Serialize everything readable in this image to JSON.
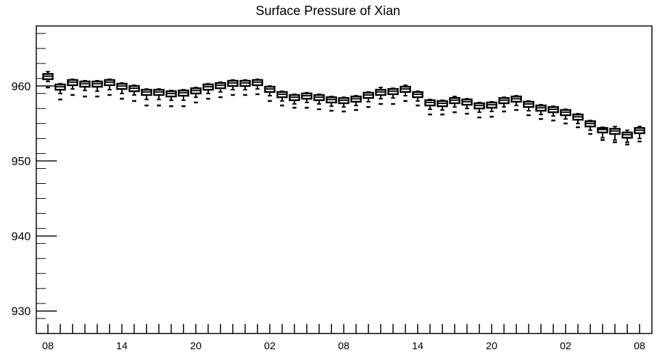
{
  "chart_data": {
    "type": "box",
    "title": "Surface Pressure of Xian",
    "xlabel": "",
    "ylabel": "",
    "ylim": [
      927,
      968
    ],
    "y_ticks": [
      930,
      940,
      950,
      960
    ],
    "x_tick_labels": [
      "08",
      "14",
      "20",
      "02",
      "08",
      "14",
      "20",
      "02",
      "08"
    ],
    "x_tick_label_positions": [
      0,
      6,
      12,
      18,
      24,
      30,
      36,
      42,
      48
    ],
    "grid": false,
    "series": [
      {
        "boxes": [
          {
            "x": 0,
            "median": 961.3,
            "q1": 960.9,
            "q3": 961.6,
            "whisker_low": 960.6,
            "whisker_high": 961.9,
            "outliers": [
              959.8
            ]
          },
          {
            "x": 1,
            "median": 959.9,
            "q1": 959.5,
            "q3": 960.2,
            "whisker_low": 959.0,
            "whisker_high": 960.3,
            "outliers": [
              958.2
            ]
          },
          {
            "x": 2,
            "median": 960.5,
            "q1": 960.1,
            "q3": 960.8,
            "whisker_low": 959.6,
            "whisker_high": 960.9,
            "outliers": [
              958.8
            ]
          },
          {
            "x": 3,
            "median": 960.3,
            "q1": 959.9,
            "q3": 960.6,
            "whisker_low": 959.4,
            "whisker_high": 960.7,
            "outliers": [
              958.6
            ]
          },
          {
            "x": 4,
            "median": 960.3,
            "q1": 959.9,
            "q3": 960.6,
            "whisker_low": 959.3,
            "whisker_high": 960.7,
            "outliers": [
              958.6
            ]
          },
          {
            "x": 5,
            "median": 960.5,
            "q1": 960.1,
            "q3": 960.8,
            "whisker_low": 959.5,
            "whisker_high": 960.9,
            "outliers": [
              958.8
            ]
          },
          {
            "x": 6,
            "median": 960.0,
            "q1": 959.6,
            "q3": 960.3,
            "whisker_low": 959.0,
            "whisker_high": 960.4,
            "outliers": [
              958.3
            ]
          },
          {
            "x": 7,
            "median": 959.7,
            "q1": 959.3,
            "q3": 960.0,
            "whisker_low": 958.8,
            "whisker_high": 960.1,
            "outliers": [
              958.0
            ]
          },
          {
            "x": 8,
            "median": 959.2,
            "q1": 958.8,
            "q3": 959.5,
            "whisker_low": 958.2,
            "whisker_high": 959.6,
            "outliers": [
              957.4
            ]
          },
          {
            "x": 9,
            "median": 959.2,
            "q1": 958.8,
            "q3": 959.5,
            "whisker_low": 958.2,
            "whisker_high": 959.6,
            "outliers": [
              957.4
            ]
          },
          {
            "x": 10,
            "median": 959.0,
            "q1": 958.6,
            "q3": 959.3,
            "whisker_low": 958.1,
            "whisker_high": 959.4,
            "outliers": [
              957.3
            ]
          },
          {
            "x": 11,
            "median": 959.1,
            "q1": 958.7,
            "q3": 959.4,
            "whisker_low": 958.1,
            "whisker_high": 959.5,
            "outliers": [
              957.3
            ]
          },
          {
            "x": 12,
            "median": 959.4,
            "q1": 959.0,
            "q3": 959.7,
            "whisker_low": 958.5,
            "whisker_high": 959.8,
            "outliers": [
              957.8
            ]
          },
          {
            "x": 13,
            "median": 959.9,
            "q1": 959.5,
            "q3": 960.2,
            "whisker_low": 959.0,
            "whisker_high": 960.3,
            "outliers": [
              958.3
            ]
          },
          {
            "x": 14,
            "median": 960.1,
            "q1": 959.7,
            "q3": 960.4,
            "whisker_low": 959.2,
            "whisker_high": 960.5,
            "outliers": [
              958.5
            ]
          },
          {
            "x": 15,
            "median": 960.4,
            "q1": 960.0,
            "q3": 960.7,
            "whisker_low": 959.5,
            "whisker_high": 960.8,
            "outliers": [
              958.8
            ]
          },
          {
            "x": 16,
            "median": 960.4,
            "q1": 960.0,
            "q3": 960.7,
            "whisker_low": 959.5,
            "whisker_high": 960.8,
            "outliers": [
              958.8
            ]
          },
          {
            "x": 17,
            "median": 960.5,
            "q1": 960.1,
            "q3": 960.8,
            "whisker_low": 959.6,
            "whisker_high": 960.9,
            "outliers": [
              958.9
            ]
          },
          {
            "x": 18,
            "median": 959.6,
            "q1": 959.2,
            "q3": 959.9,
            "whisker_low": 958.7,
            "whisker_high": 960.0,
            "outliers": [
              958.0
            ]
          },
          {
            "x": 19,
            "median": 958.9,
            "q1": 958.5,
            "q3": 959.2,
            "whisker_low": 958.0,
            "whisker_high": 959.3,
            "outliers": [
              957.4
            ]
          },
          {
            "x": 20,
            "median": 958.5,
            "q1": 958.1,
            "q3": 958.8,
            "whisker_low": 957.6,
            "whisker_high": 958.9,
            "outliers": [
              957.1
            ]
          },
          {
            "x": 21,
            "median": 958.7,
            "q1": 958.3,
            "q3": 959.0,
            "whisker_low": 957.8,
            "whisker_high": 959.1,
            "outliers": [
              957.1
            ]
          },
          {
            "x": 22,
            "median": 958.5,
            "q1": 958.1,
            "q3": 958.8,
            "whisker_low": 957.6,
            "whisker_high": 958.9,
            "outliers": [
              956.9
            ]
          },
          {
            "x": 23,
            "median": 958.2,
            "q1": 957.8,
            "q3": 958.5,
            "whisker_low": 957.3,
            "whisker_high": 958.6,
            "outliers": [
              956.7
            ]
          },
          {
            "x": 24,
            "median": 958.1,
            "q1": 957.7,
            "q3": 958.4,
            "whisker_low": 957.2,
            "whisker_high": 958.5,
            "outliers": [
              956.6
            ]
          },
          {
            "x": 25,
            "median": 958.3,
            "q1": 957.9,
            "q3": 958.6,
            "whisker_low": 957.4,
            "whisker_high": 958.7,
            "outliers": [
              956.8
            ]
          },
          {
            "x": 26,
            "median": 958.8,
            "q1": 958.4,
            "q3": 959.1,
            "whisker_low": 957.9,
            "whisker_high": 959.2,
            "outliers": [
              957.2
            ]
          },
          {
            "x": 27,
            "median": 959.2,
            "q1": 958.8,
            "q3": 959.5,
            "whisker_low": 958.3,
            "whisker_high": 959.8,
            "outliers": [
              957.6
            ]
          },
          {
            "x": 28,
            "median": 959.3,
            "q1": 958.9,
            "q3": 959.6,
            "whisker_low": 958.4,
            "whisker_high": 959.7,
            "outliers": [
              957.6
            ]
          },
          {
            "x": 29,
            "median": 959.6,
            "q1": 959.2,
            "q3": 959.9,
            "whisker_low": 958.7,
            "whisker_high": 960.1,
            "outliers": [
              958.0
            ]
          },
          {
            "x": 30,
            "median": 958.9,
            "q1": 958.5,
            "q3": 959.2,
            "whisker_low": 958.0,
            "whisker_high": 959.3,
            "outliers": [
              957.4
            ]
          },
          {
            "x": 31,
            "median": 957.8,
            "q1": 957.4,
            "q3": 958.1,
            "whisker_low": 956.9,
            "whisker_high": 958.2,
            "outliers": [
              956.2
            ]
          },
          {
            "x": 32,
            "median": 957.7,
            "q1": 957.3,
            "q3": 958.0,
            "whisker_low": 956.8,
            "whisker_high": 958.1,
            "outliers": [
              956.2
            ]
          },
          {
            "x": 33,
            "median": 958.1,
            "q1": 957.7,
            "q3": 958.4,
            "whisker_low": 957.2,
            "whisker_high": 958.6,
            "outliers": [
              956.5
            ]
          },
          {
            "x": 34,
            "median": 957.9,
            "q1": 957.5,
            "q3": 958.2,
            "whisker_low": 957.0,
            "whisker_high": 958.3,
            "outliers": [
              956.3
            ]
          },
          {
            "x": 35,
            "median": 957.4,
            "q1": 957.0,
            "q3": 957.7,
            "whisker_low": 956.5,
            "whisker_high": 957.8,
            "outliers": [
              955.8
            ]
          },
          {
            "x": 36,
            "median": 957.5,
            "q1": 957.1,
            "q3": 957.8,
            "whisker_low": 956.6,
            "whisker_high": 957.9,
            "outliers": [
              955.9
            ]
          },
          {
            "x": 37,
            "median": 958.1,
            "q1": 957.7,
            "q3": 958.4,
            "whisker_low": 957.2,
            "whisker_high": 958.5,
            "outliers": [
              956.6
            ]
          },
          {
            "x": 38,
            "median": 958.3,
            "q1": 957.9,
            "q3": 958.6,
            "whisker_low": 957.4,
            "whisker_high": 958.7,
            "outliers": [
              956.8
            ]
          },
          {
            "x": 39,
            "median": 957.6,
            "q1": 957.2,
            "q3": 957.9,
            "whisker_low": 956.7,
            "whisker_high": 958.0,
            "outliers": [
              956.1
            ]
          },
          {
            "x": 40,
            "median": 957.1,
            "q1": 956.7,
            "q3": 957.4,
            "whisker_low": 956.2,
            "whisker_high": 957.5,
            "outliers": [
              955.6
            ]
          },
          {
            "x": 41,
            "median": 956.9,
            "q1": 956.5,
            "q3": 957.2,
            "whisker_low": 956.0,
            "whisker_high": 957.3,
            "outliers": [
              955.4
            ]
          },
          {
            "x": 42,
            "median": 956.5,
            "q1": 956.1,
            "q3": 956.8,
            "whisker_low": 955.6,
            "whisker_high": 956.9,
            "outliers": [
              955.0
            ]
          },
          {
            "x": 43,
            "median": 955.9,
            "q1": 955.5,
            "q3": 956.2,
            "whisker_low": 955.0,
            "whisker_high": 956.3,
            "outliers": [
              954.5
            ]
          },
          {
            "x": 44,
            "median": 955.0,
            "q1": 954.6,
            "q3": 955.3,
            "whisker_low": 954.1,
            "whisker_high": 955.4,
            "outliers": [
              953.6
            ]
          },
          {
            "x": 45,
            "median": 954.2,
            "q1": 953.8,
            "q3": 954.4,
            "whisker_low": 953.1,
            "whisker_high": 954.5,
            "outliers": [
              952.8
            ]
          },
          {
            "x": 46,
            "median": 954.0,
            "q1": 953.6,
            "q3": 954.3,
            "whisker_low": 952.8,
            "whisker_high": 954.6,
            "outliers": [
              952.5
            ]
          },
          {
            "x": 47,
            "median": 953.5,
            "q1": 953.1,
            "q3": 953.8,
            "whisker_low": 952.5,
            "whisker_high": 954.1,
            "outliers": [
              952.2
            ]
          },
          {
            "x": 48,
            "median": 954.1,
            "q1": 953.7,
            "q3": 954.4,
            "whisker_low": 953.0,
            "whisker_high": 954.6,
            "outliers": [
              952.6
            ]
          }
        ]
      }
    ]
  }
}
